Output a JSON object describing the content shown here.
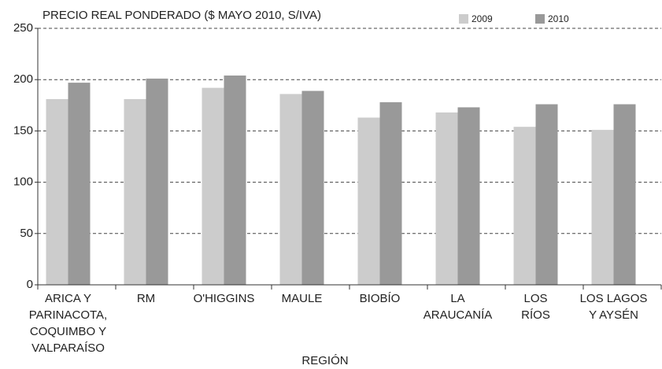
{
  "chart_data": {
    "type": "bar",
    "ylabel": "PRECIO REAL PONDERADO ($ MAYO 2010, S/IVA)",
    "xlabel": "REGIÓN",
    "categories": [
      "ARICA Y\nPARINACOTA,\nCOQUIMBO Y\nVALPARAÍSO",
      "RM",
      "O'HIGGINS",
      "MAULE",
      "BIOBÍO",
      "LA\nARAUCANÍA",
      "LOS\nRÍOS",
      "LOS LAGOS\nY AYSÉN"
    ],
    "series": [
      {
        "name": "2009",
        "color": "#cccccc",
        "values": [
          181,
          181,
          192,
          186,
          163,
          168,
          154,
          151
        ]
      },
      {
        "name": "2010",
        "color": "#999999",
        "values": [
          197,
          201,
          204,
          189,
          178,
          173,
          176,
          176
        ]
      }
    ],
    "ylim": [
      0,
      250
    ],
    "yticks": [
      0,
      50,
      100,
      150,
      200,
      250
    ],
    "grid": true,
    "legend": "top-right"
  }
}
